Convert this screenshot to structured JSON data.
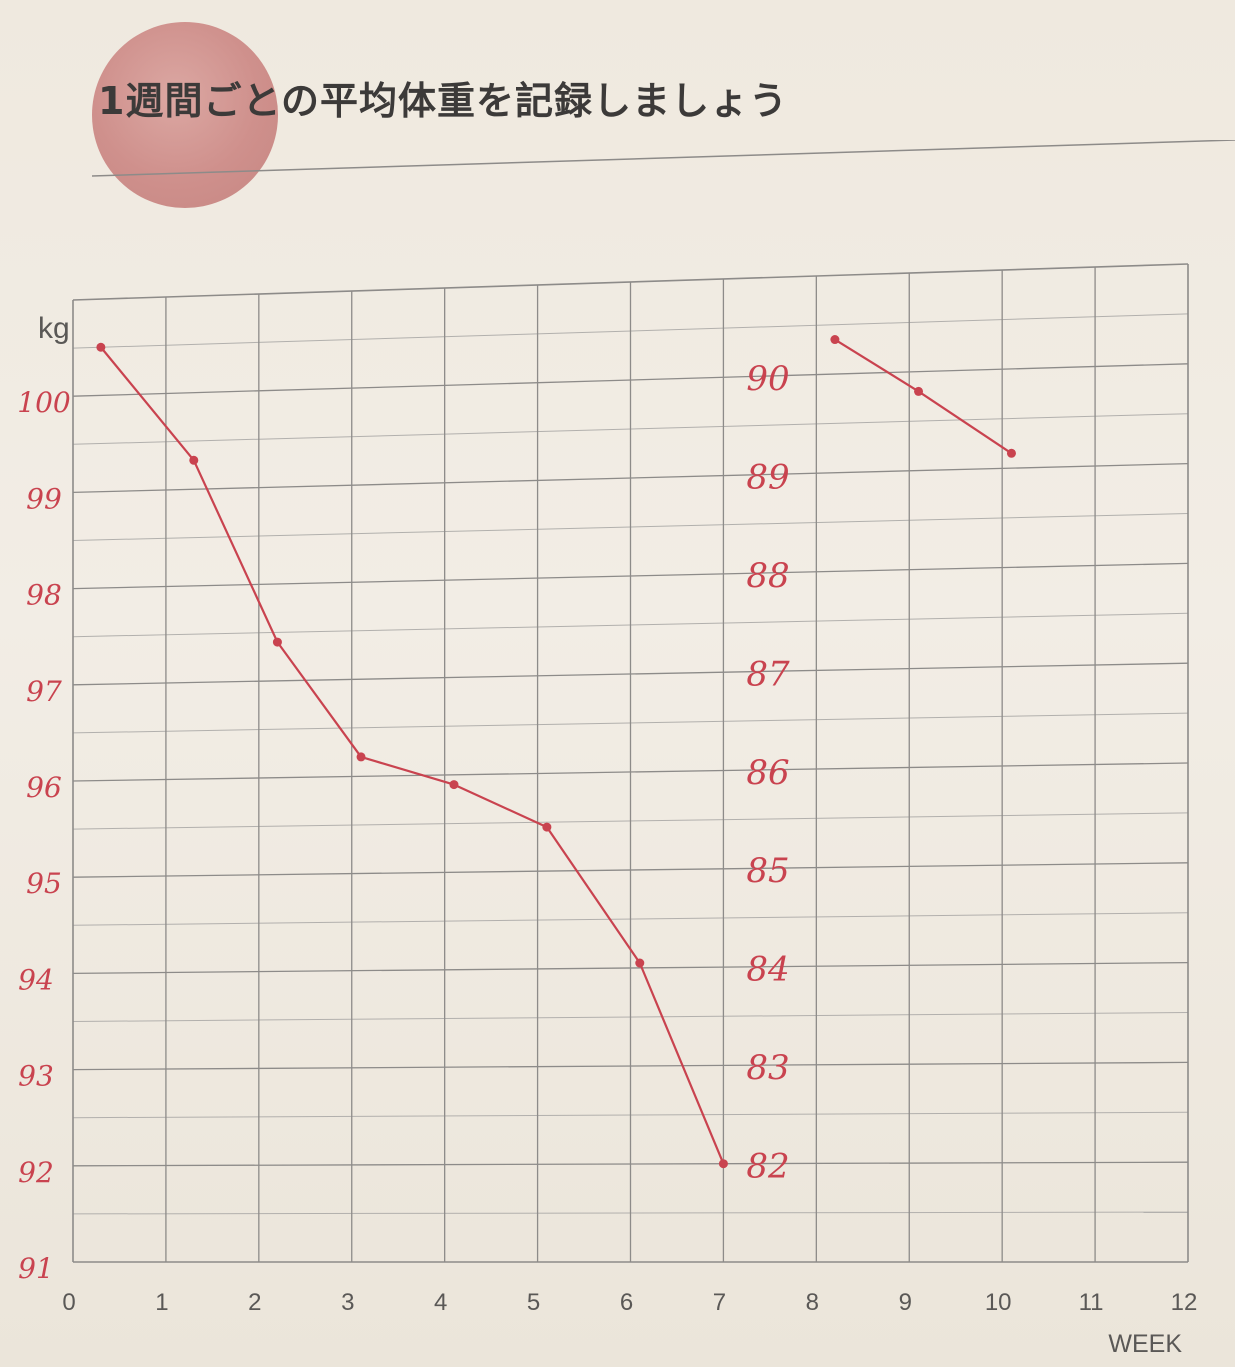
{
  "title": "1週間ごとの平均体重を記録しましょう",
  "colors": {
    "ink": "#c9434f",
    "grid": "#8d8b89",
    "grid_minor": "#b2b0ad",
    "print_text": "#5a5856"
  },
  "chart_data": {
    "type": "line",
    "title": "1週間ごとの平均体重を記録しましょう",
    "xlabel": "WEEK",
    "ylabel": "kg",
    "xlim": [
      0,
      12
    ],
    "x_ticks": [
      "0",
      "1",
      "2",
      "3",
      "4",
      "5",
      "6",
      "7",
      "8",
      "9",
      "10",
      "11",
      "12"
    ],
    "grid": true,
    "left_scale": {
      "ylim": [
        91,
        101
      ],
      "tick_labels": [
        "100",
        "99",
        "98",
        "97",
        "96",
        "95",
        "94",
        "93",
        "92",
        "91"
      ],
      "tick_values": [
        100,
        99,
        98,
        97,
        96,
        95,
        94,
        93,
        92,
        91
      ]
    },
    "right_scale": {
      "ylim": [
        81,
        91
      ],
      "tick_labels": [
        "90",
        "89",
        "88",
        "87",
        "86",
        "85",
        "84",
        "83",
        "82"
      ],
      "tick_values": [
        90,
        89,
        88,
        87,
        86,
        85,
        84,
        83,
        82
      ]
    },
    "series": [
      {
        "scale": "left",
        "x": [
          0.3,
          1.3,
          2.2,
          3.1,
          4.1,
          5.1,
          6.1,
          7.0
        ],
        "y": [
          100.5,
          99.3,
          97.4,
          96.2,
          95.9,
          95.45,
          94.05,
          92.0
        ]
      },
      {
        "scale": "right",
        "x": [
          8.2,
          9.1,
          10.1
        ],
        "y": [
          90.35,
          89.8,
          89.15
        ]
      }
    ]
  }
}
